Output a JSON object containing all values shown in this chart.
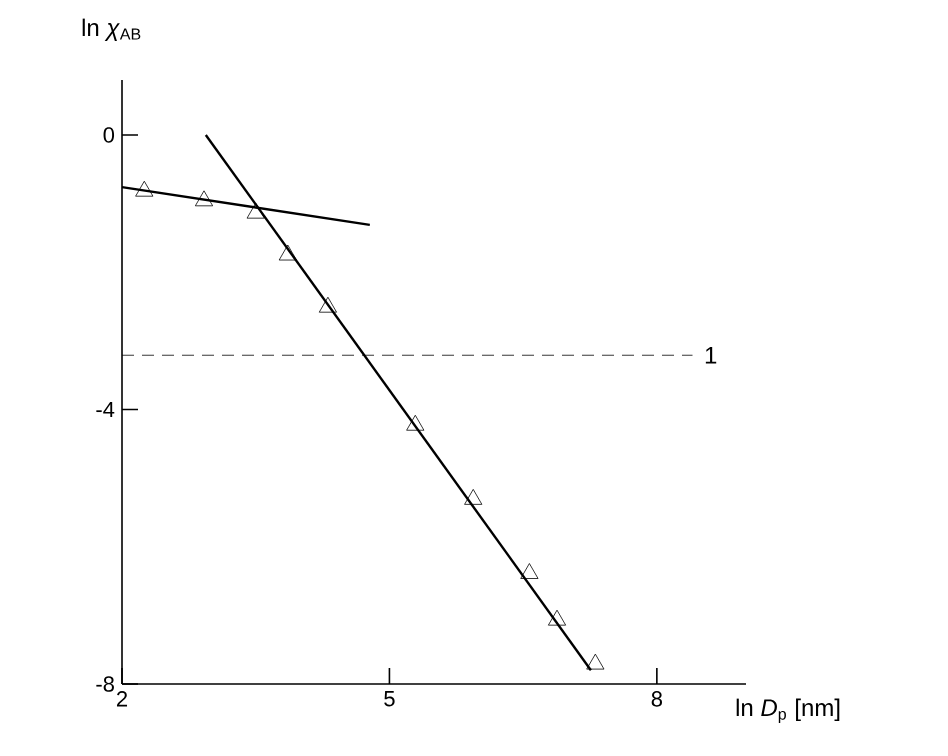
{
  "chart_data": {
    "type": "scatter",
    "xlabel": "ln *D*$_{p}$ [nm]",
    "ylabel": "ln *χ*$_{AB}$",
    "xlim": [
      2,
      9
    ],
    "ylim": [
      -8,
      0.8
    ],
    "xticks": [
      2,
      5,
      8
    ],
    "yticks": [
      0,
      -4,
      -8
    ],
    "series": [
      {
        "marker": "triangle",
        "color": "#000000",
        "x": [
          2.25,
          2.92,
          3.5,
          3.86,
          4.31,
          5.29,
          5.94,
          6.57,
          6.88,
          7.31
        ],
        "values": [
          -0.82,
          -0.96,
          -1.14,
          -1.75,
          -2.51,
          -4.23,
          -5.31,
          -6.39,
          -7.07,
          -7.71
        ]
      },
      {
        "type": "line",
        "color": "#000000",
        "x": [
          2.0,
          4.78
        ],
        "values": [
          -0.76,
          -1.31
        ]
      },
      {
        "type": "line",
        "color": "#000000",
        "x": [
          2.94,
          7.26
        ],
        "values": [
          0.0,
          -7.8
        ]
      }
    ],
    "ref_lines": [
      {
        "axis": "y",
        "value": -3.21,
        "line_style": "dashed"
      }
    ],
    "annotations": [
      {
        "text": "1",
        "x": 8.45,
        "y": -3.21
      }
    ]
  }
}
